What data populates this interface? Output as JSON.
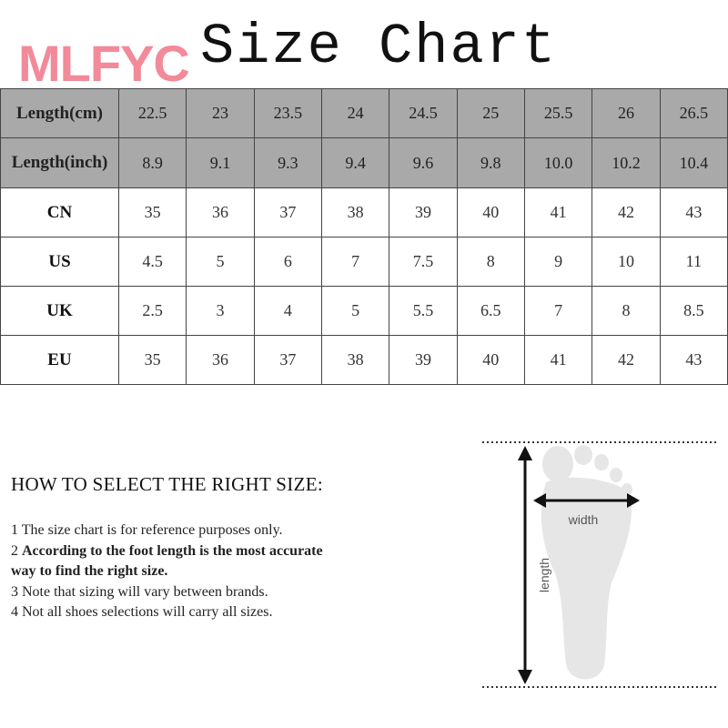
{
  "brand": "MLFYC",
  "title": "Size Chart",
  "table": {
    "rows": [
      {
        "label": "Length(cm)",
        "values": [
          "22.5",
          "23",
          "23.5",
          "24",
          "24.5",
          "25",
          "25.5",
          "26",
          "26.5"
        ]
      },
      {
        "label": "Length(inch)",
        "values": [
          "8.9",
          "9.1",
          "9.3",
          "9.4",
          "9.6",
          "9.8",
          "10.0",
          "10.2",
          "10.4"
        ]
      },
      {
        "label": "CN",
        "values": [
          "35",
          "36",
          "37",
          "38",
          "39",
          "40",
          "41",
          "42",
          "43"
        ]
      },
      {
        "label": "US",
        "values": [
          "4.5",
          "5",
          "6",
          "7",
          "7.5",
          "8",
          "9",
          "10",
          "11"
        ]
      },
      {
        "label": "UK",
        "values": [
          "2.5",
          "3",
          "4",
          "5",
          "5.5",
          "6.5",
          "7",
          "8",
          "8.5"
        ]
      },
      {
        "label": "EU",
        "values": [
          "35",
          "36",
          "37",
          "38",
          "39",
          "40",
          "41",
          "42",
          "43"
        ]
      }
    ]
  },
  "howto": {
    "heading": "HOW TO SELECT THE RIGHT SIZE:",
    "notes": [
      {
        "num": "1",
        "text": "The size chart is for reference purposes only."
      },
      {
        "num": "2",
        "text": "According to the foot length is the most accurate way to find the right size."
      },
      {
        "num": "3",
        "text": "Note that sizing will vary between brands."
      },
      {
        "num": "4",
        "text": "Not all shoes selections will carry all sizes."
      }
    ]
  },
  "diagram": {
    "width_label": "width",
    "length_label": "length"
  },
  "colors": {
    "header_fill": "#a9a9a9",
    "brand": "#f28a9a",
    "foot": "#e6e6e6"
  }
}
